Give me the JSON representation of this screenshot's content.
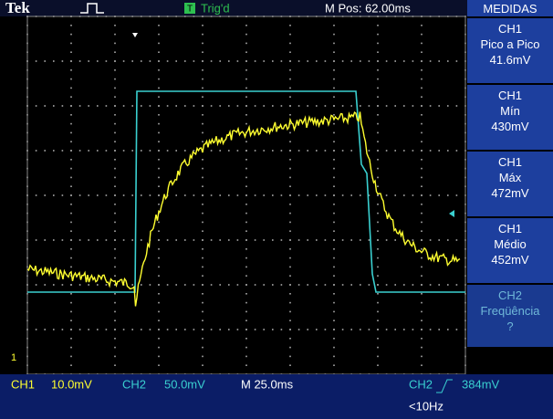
{
  "header": {
    "brand": "Tek",
    "trigger_icon": "T",
    "trigger_status": "Trig'd",
    "position": "M Pos: 62.00ms"
  },
  "measurements": {
    "title": "MEDIDAS",
    "items": [
      {
        "channel": "CH1",
        "name": "Pico a Pico",
        "value": "41.6mV"
      },
      {
        "channel": "CH1",
        "name": "Mín",
        "value": "430mV"
      },
      {
        "channel": "CH1",
        "name": "Máx",
        "value": "472mV"
      },
      {
        "channel": "CH1",
        "name": "Médio",
        "value": "452mV"
      },
      {
        "channel": "CH2",
        "name": "Freqüência",
        "value": "?"
      }
    ]
  },
  "marker": "1",
  "footer": {
    "ch1_label": "CH1",
    "ch1_scale": "10.0mV",
    "ch2_label": "CH2",
    "ch2_scale": "50.0mV",
    "timebase": "M 25.0ms",
    "trigger_source": "CH2",
    "trigger_level": "384mV",
    "frequency": "<10Hz"
  }
}
